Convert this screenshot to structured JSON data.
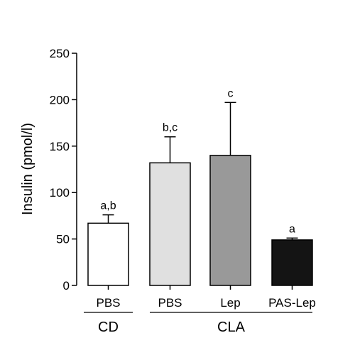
{
  "chart_data": {
    "type": "bar",
    "title": "",
    "xlabel": "",
    "ylabel": "Insulin (pmol/l)",
    "ylim": [
      0,
      250
    ],
    "yticks": [
      0,
      50,
      100,
      150,
      200,
      250
    ],
    "grid": false,
    "categories": [
      "PBS",
      "PBS",
      "Lep",
      "PAS-Lep"
    ],
    "groups": [
      {
        "label": "CD",
        "categories": [
          0
        ]
      },
      {
        "label": "CLA",
        "categories": [
          1,
          2,
          3
        ]
      }
    ],
    "values": [
      67,
      132,
      140,
      49
    ],
    "errors": [
      9,
      28,
      57,
      2
    ],
    "significance": [
      "a,b",
      "b,c",
      "c",
      "a"
    ],
    "colors": [
      "#ffffff",
      "#e0e0e0",
      "#999999",
      "#141414"
    ]
  }
}
